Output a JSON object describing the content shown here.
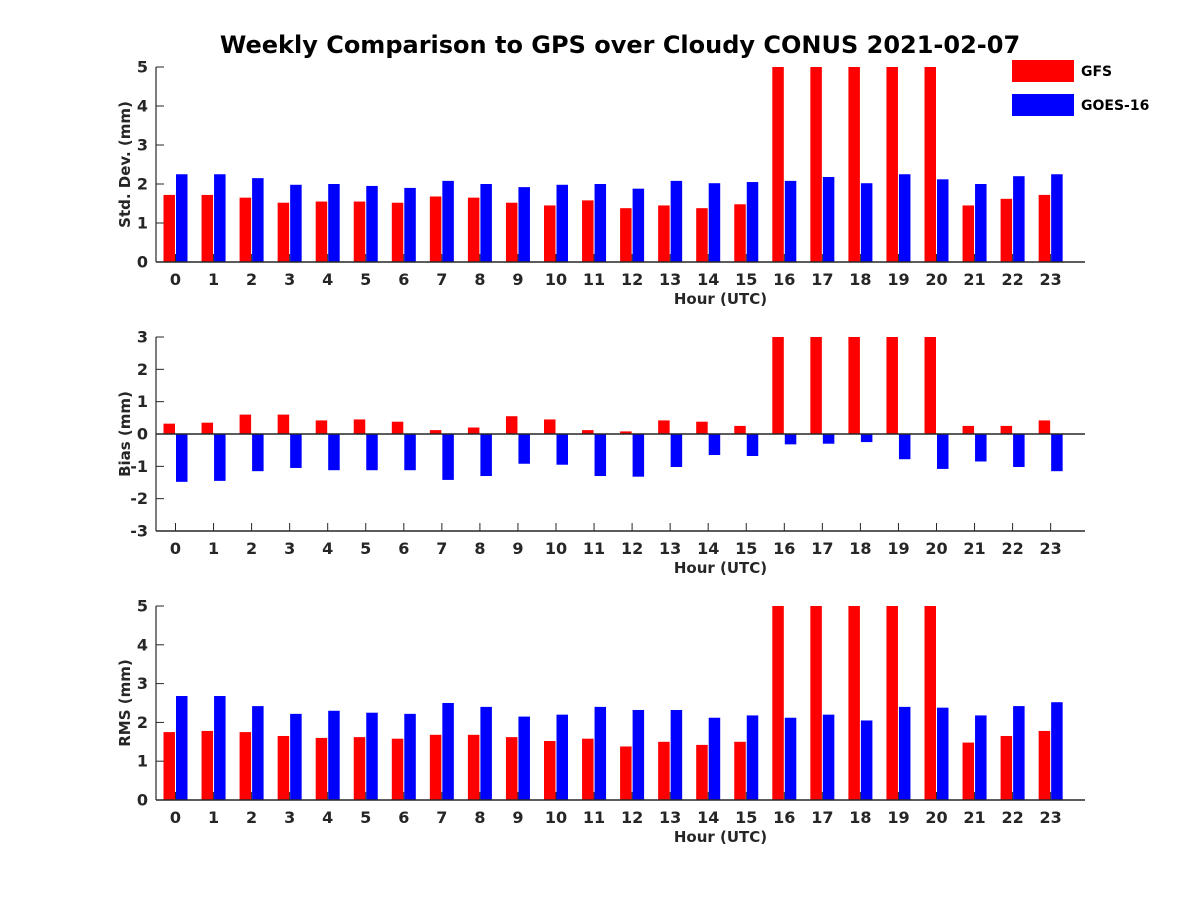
{
  "title": "Weekly Comparison to GPS over Cloudy CONUS 2021-02-07",
  "colors": {
    "GFS": "#ff0000",
    "GOES-16": "#0000ff",
    "axis": "#262626"
  },
  "legend": {
    "placement": "top-right",
    "items": [
      {
        "label": "GFS",
        "color": "#ff0000"
      },
      {
        "label": "GOES-16",
        "color": "#0000ff"
      }
    ]
  },
  "chart_data": [
    {
      "type": "bar",
      "ylabel": "Std. Dev. (mm)",
      "xlabel": "Hour (UTC)",
      "ylim": [
        0,
        5
      ],
      "yticks": [
        "0",
        "1",
        "2",
        "3",
        "4",
        "5"
      ],
      "categories": [
        "0",
        "1",
        "2",
        "3",
        "4",
        "5",
        "6",
        "7",
        "8",
        "9",
        "10",
        "11",
        "12",
        "13",
        "14",
        "15",
        "16",
        "17",
        "18",
        "19",
        "20",
        "21",
        "22",
        "23"
      ],
      "grid": false,
      "series": [
        {
          "name": "GFS",
          "values": [
            1.72,
            1.72,
            1.65,
            1.52,
            1.55,
            1.55,
            1.52,
            1.68,
            1.65,
            1.52,
            1.45,
            1.58,
            1.38,
            1.45,
            1.38,
            1.48,
            5,
            5,
            5,
            5,
            5,
            1.45,
            1.62,
            1.72
          ]
        },
        {
          "name": "GOES-16",
          "values": [
            2.25,
            2.25,
            2.15,
            1.98,
            2.0,
            1.95,
            1.9,
            2.08,
            2.0,
            1.92,
            1.98,
            2.0,
            1.88,
            2.08,
            2.02,
            2.05,
            2.08,
            2.18,
            2.02,
            2.25,
            2.12,
            2.0,
            2.2,
            2.25
          ]
        }
      ]
    },
    {
      "type": "bar",
      "ylabel": "Bias (mm)",
      "xlabel": "Hour (UTC)",
      "ylim": [
        -3,
        3
      ],
      "yticks": [
        "-3",
        "-2",
        "-1",
        "0",
        "1",
        "2",
        "3"
      ],
      "categories": [
        "0",
        "1",
        "2",
        "3",
        "4",
        "5",
        "6",
        "7",
        "8",
        "9",
        "10",
        "11",
        "12",
        "13",
        "14",
        "15",
        "16",
        "17",
        "18",
        "19",
        "20",
        "21",
        "22",
        "23"
      ],
      "grid": false,
      "series": [
        {
          "name": "GFS",
          "values": [
            0.32,
            0.35,
            0.6,
            0.6,
            0.42,
            0.45,
            0.38,
            0.12,
            0.2,
            0.55,
            0.45,
            0.12,
            0.08,
            0.42,
            0.38,
            0.25,
            3,
            3,
            3,
            3,
            3,
            0.25,
            0.25,
            0.42
          ]
        },
        {
          "name": "GOES-16",
          "values": [
            -1.48,
            -1.45,
            -1.15,
            -1.05,
            -1.12,
            -1.12,
            -1.12,
            -1.42,
            -1.3,
            -0.92,
            -0.95,
            -1.3,
            -1.32,
            -1.02,
            -0.65,
            -0.68,
            -0.32,
            -0.3,
            -0.25,
            -0.78,
            -1.08,
            -0.85,
            -1.02,
            -1.15
          ]
        }
      ]
    },
    {
      "type": "bar",
      "ylabel": "RMS (mm)",
      "xlabel": "Hour (UTC)",
      "ylim": [
        0,
        5
      ],
      "yticks": [
        "0",
        "1",
        "2",
        "3",
        "4",
        "5"
      ],
      "categories": [
        "0",
        "1",
        "2",
        "3",
        "4",
        "5",
        "6",
        "7",
        "8",
        "9",
        "10",
        "11",
        "12",
        "13",
        "14",
        "15",
        "16",
        "17",
        "18",
        "19",
        "20",
        "21",
        "22",
        "23"
      ],
      "grid": false,
      "series": [
        {
          "name": "GFS",
          "values": [
            1.75,
            1.78,
            1.75,
            1.65,
            1.6,
            1.62,
            1.58,
            1.68,
            1.68,
            1.62,
            1.52,
            1.58,
            1.38,
            1.5,
            1.42,
            1.5,
            5,
            5,
            5,
            5,
            5,
            1.48,
            1.65,
            1.78
          ]
        },
        {
          "name": "GOES-16",
          "values": [
            2.68,
            2.68,
            2.42,
            2.22,
            2.3,
            2.25,
            2.22,
            2.5,
            2.4,
            2.15,
            2.2,
            2.4,
            2.32,
            2.32,
            2.12,
            2.18,
            2.12,
            2.2,
            2.05,
            2.4,
            2.38,
            2.18,
            2.42,
            2.52
          ]
        }
      ]
    }
  ]
}
